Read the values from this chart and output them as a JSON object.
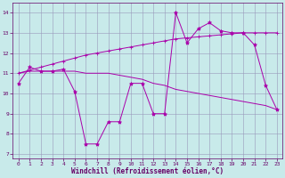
{
  "xlabel": "Windchill (Refroidissement éolien,°C)",
  "line1": {
    "x": [
      0,
      1,
      2,
      3,
      4,
      5,
      6,
      7,
      8,
      9,
      10,
      11,
      12,
      13,
      14,
      15,
      16,
      17,
      18,
      19,
      20,
      21,
      22,
      23
    ],
    "y": [
      10.5,
      11.3,
      11.1,
      11.1,
      11.2,
      10.1,
      7.5,
      7.5,
      8.6,
      8.6,
      10.5,
      10.5,
      9.0,
      9.0,
      14.0,
      12.5,
      13.2,
      13.5,
      13.1,
      13.0,
      13.0,
      12.4,
      10.4,
      9.2
    ],
    "color": "#aa00aa",
    "marker": "*",
    "markersize": 3,
    "linewidth": 0.7
  },
  "line2": {
    "x": [
      0,
      1,
      2,
      3,
      4,
      5,
      6,
      7,
      8,
      9,
      10,
      11,
      12,
      13,
      14,
      15,
      16,
      17,
      18,
      19,
      20,
      21,
      22,
      23
    ],
    "y": [
      11.0,
      11.15,
      11.3,
      11.45,
      11.6,
      11.75,
      11.9,
      12.0,
      12.1,
      12.2,
      12.3,
      12.4,
      12.5,
      12.6,
      12.7,
      12.75,
      12.8,
      12.85,
      12.9,
      12.95,
      13.0,
      13.0,
      13.0,
      13.0
    ],
    "color": "#aa00aa",
    "marker": "+",
    "markersize": 3,
    "linewidth": 0.7
  },
  "line3": {
    "x": [
      0,
      1,
      2,
      3,
      4,
      5,
      6,
      7,
      8,
      9,
      10,
      11,
      12,
      13,
      14,
      15,
      16,
      17,
      18,
      19,
      20,
      21,
      22,
      23
    ],
    "y": [
      11.0,
      11.1,
      11.1,
      11.1,
      11.1,
      11.1,
      11.0,
      11.0,
      11.0,
      10.9,
      10.8,
      10.7,
      10.5,
      10.4,
      10.2,
      10.1,
      10.0,
      9.9,
      9.8,
      9.7,
      9.6,
      9.5,
      9.4,
      9.2
    ],
    "color": "#aa00aa",
    "marker": null,
    "markersize": 0,
    "linewidth": 0.7
  },
  "bg_color": "#c8eaea",
  "grid_color": "#9999bb",
  "ylim": [
    6.8,
    14.5
  ],
  "xlim": [
    -0.5,
    23.5
  ],
  "yticks": [
    7,
    8,
    9,
    10,
    11,
    12,
    13,
    14
  ],
  "xticks": [
    0,
    1,
    2,
    3,
    4,
    5,
    6,
    7,
    8,
    9,
    10,
    11,
    12,
    13,
    14,
    15,
    16,
    17,
    18,
    19,
    20,
    21,
    22,
    23
  ],
  "tick_color": "#660066",
  "label_color": "#660066",
  "xlabel_fontsize": 5.5,
  "tick_fontsize": 4.5
}
